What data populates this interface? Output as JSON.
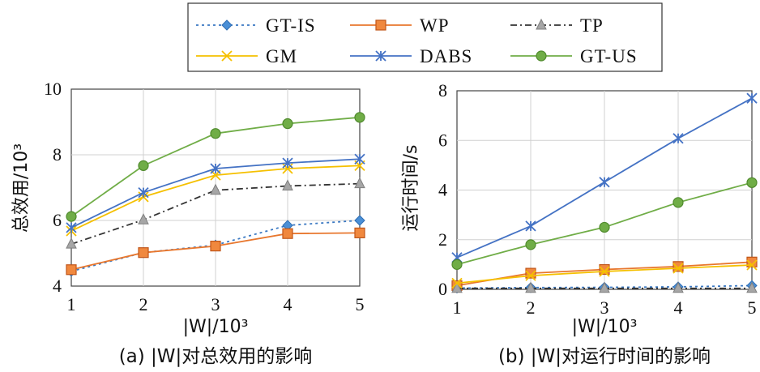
{
  "legend": [
    {
      "name": "GT-IS",
      "color": "#3a78c2",
      "dash": "3,4",
      "marker": "diamond"
    },
    {
      "name": "WP",
      "color": "#e8772e",
      "dash": "",
      "marker": "square"
    },
    {
      "name": "TP",
      "color": "#333333",
      "dash": "8,4,2,4",
      "marker": "triangle"
    },
    {
      "name": "GM",
      "color": "#f5c000",
      "dash": "",
      "marker": "x"
    },
    {
      "name": "DABS",
      "color": "#4472c4",
      "dash": "",
      "marker": "star"
    },
    {
      "name": "GT-US",
      "color": "#70ad47",
      "dash": "",
      "marker": "circle"
    }
  ],
  "chart_data": [
    {
      "type": "line",
      "caption": "(a) |W|对总效用的影响",
      "xlabel": "|W|/10³",
      "ylabel": "总效用/10³",
      "x": [
        1,
        2,
        3,
        4,
        5
      ],
      "xticks": [
        "1",
        "2",
        "3",
        "4",
        "5"
      ],
      "ylim": [
        4,
        10
      ],
      "yticks": [
        "4",
        "6",
        "8",
        "10"
      ],
      "series": [
        {
          "name": "GT-IS",
          "values": [
            4.45,
            5.02,
            5.25,
            5.85,
            6.0
          ]
        },
        {
          "name": "WP",
          "values": [
            4.5,
            5.02,
            5.22,
            5.6,
            5.62
          ]
        },
        {
          "name": "TP",
          "values": [
            5.28,
            6.02,
            6.92,
            7.05,
            7.12
          ]
        },
        {
          "name": "GM",
          "values": [
            5.68,
            6.72,
            7.38,
            7.58,
            7.67
          ]
        },
        {
          "name": "DABS",
          "values": [
            5.78,
            6.85,
            7.58,
            7.75,
            7.87
          ]
        },
        {
          "name": "GT-US",
          "values": [
            6.12,
            7.67,
            8.65,
            8.95,
            9.14
          ]
        }
      ]
    },
    {
      "type": "line",
      "caption": "(b) |W|对运行时间的影响",
      "xlabel": "|W|/10³",
      "ylabel": "运行时间/s",
      "x": [
        1,
        2,
        3,
        4,
        5
      ],
      "xticks": [
        "1",
        "2",
        "3",
        "4",
        "5"
      ],
      "ylim": [
        0,
        8
      ],
      "yticks": [
        "0",
        "2",
        "4",
        "6",
        "8"
      ],
      "series": [
        {
          "name": "GT-IS",
          "values": [
            0.05,
            0.07,
            0.08,
            0.1,
            0.15
          ]
        },
        {
          "name": "WP",
          "values": [
            0.15,
            0.65,
            0.8,
            0.92,
            1.1
          ]
        },
        {
          "name": "TP",
          "values": [
            0.04,
            0.04,
            0.04,
            0.04,
            0.04
          ]
        },
        {
          "name": "GM",
          "values": [
            0.25,
            0.55,
            0.72,
            0.85,
            0.98
          ]
        },
        {
          "name": "DABS",
          "values": [
            1.28,
            2.55,
            4.32,
            6.08,
            7.7
          ]
        },
        {
          "name": "GT-US",
          "values": [
            1.0,
            1.8,
            2.5,
            3.5,
            4.3
          ]
        }
      ]
    }
  ]
}
